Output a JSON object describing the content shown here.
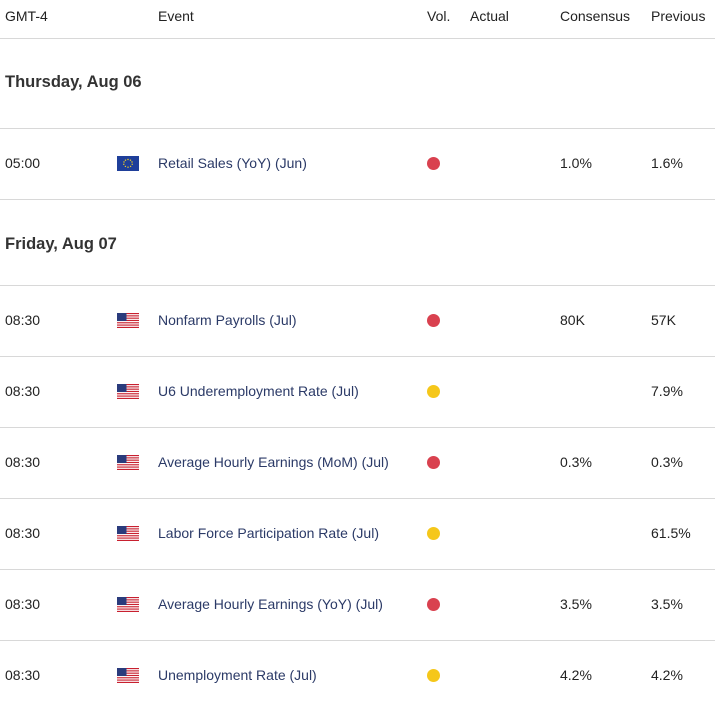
{
  "colors": {
    "high": "#d9414f",
    "medium": "#f5c71a",
    "event_text": "#2b3a67",
    "border": "#d8d8d8"
  },
  "header": {
    "timezone": "GMT-4",
    "event": "Event",
    "vol": "Vol.",
    "actual": "Actual",
    "consensus": "Consensus",
    "previous": "Previous"
  },
  "days": [
    {
      "label": "Thursday, Aug 06",
      "events": [
        {
          "time": "05:00",
          "flag": "eu-flag-icon",
          "event": "Retail Sales (YoY) (Jun)",
          "vol": "high",
          "actual": "",
          "consensus": "1.0%",
          "previous": "1.6%"
        }
      ]
    },
    {
      "label": "Friday, Aug 07",
      "events": [
        {
          "time": "08:30",
          "flag": "us-flag-icon",
          "event": "Nonfarm Payrolls (Jul)",
          "vol": "high",
          "actual": "",
          "consensus": "80K",
          "previous": "57K"
        },
        {
          "time": "08:30",
          "flag": "us-flag-icon",
          "event": "U6 Underemployment Rate (Jul)",
          "vol": "medium",
          "actual": "",
          "consensus": "",
          "previous": "7.9%"
        },
        {
          "time": "08:30",
          "flag": "us-flag-icon",
          "event": "Average Hourly Earnings (MoM) (Jul)",
          "vol": "high",
          "actual": "",
          "consensus": "0.3%",
          "previous": "0.3%"
        },
        {
          "time": "08:30",
          "flag": "us-flag-icon",
          "event": "Labor Force Participation Rate (Jul)",
          "vol": "medium",
          "actual": "",
          "consensus": "",
          "previous": "61.5%"
        },
        {
          "time": "08:30",
          "flag": "us-flag-icon",
          "event": "Average Hourly Earnings (YoY) (Jul)",
          "vol": "high",
          "actual": "",
          "consensus": "3.5%",
          "previous": "3.5%"
        },
        {
          "time": "08:30",
          "flag": "us-flag-icon",
          "event": "Unemployment Rate (Jul)",
          "vol": "medium",
          "actual": "",
          "consensus": "4.2%",
          "previous": "4.2%"
        }
      ]
    }
  ]
}
